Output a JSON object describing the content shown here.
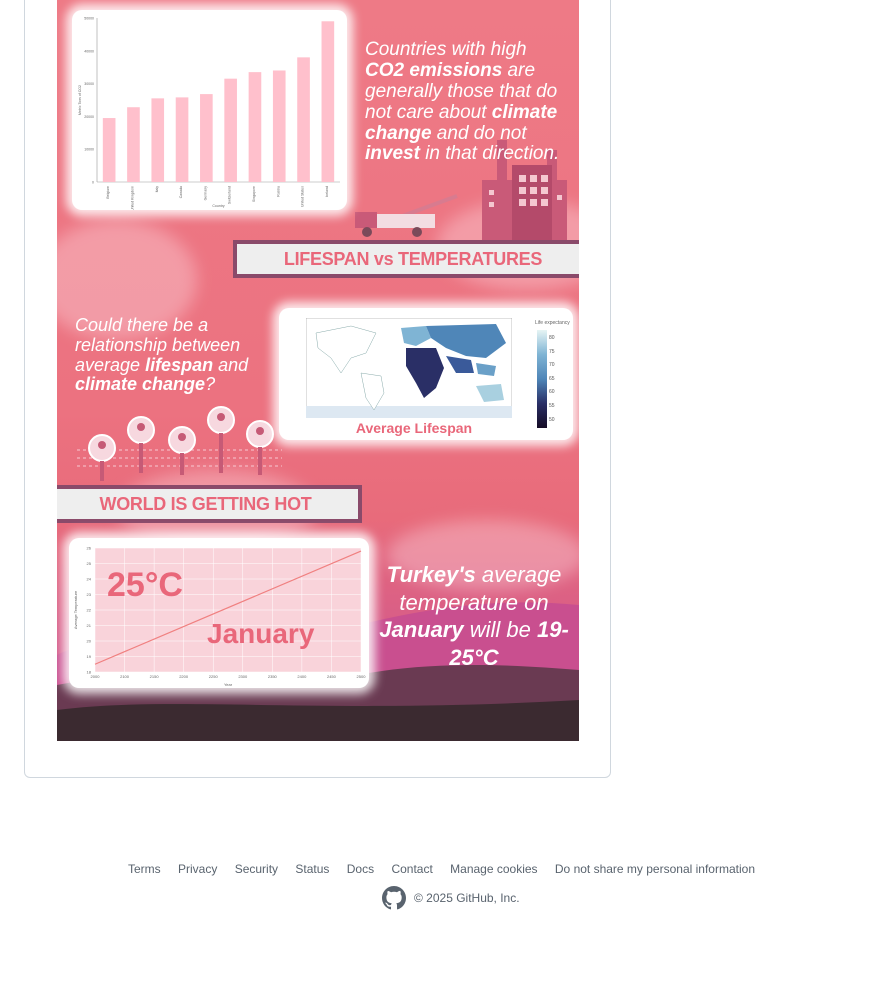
{
  "poster": {
    "top_text": {
      "part1": "Countries with high ",
      "bold1": "CO2 emissions",
      "part2": " are generally those that do not care about ",
      "bold2": "climate change",
      "part3": " and do not ",
      "bold3": "invest",
      "part4": " in that direction."
    },
    "headline_lifespan": "LIFESPAN vs TEMPERATURES",
    "question_text": {
      "part1": "Could there be a relationship between average ",
      "bold1": "lifespan",
      "part2": " and ",
      "bold2": "climate change",
      "part3": "?"
    },
    "map_caption": "Average Lifespan",
    "map_legend_title": "Life expectancy",
    "map_legend_ticks": [
      "80",
      "75",
      "70",
      "65",
      "60",
      "55",
      "50"
    ],
    "headline_hot": "WORLD IS GETTING HOT",
    "temp_big": "25°C",
    "temp_month": "January",
    "turkey_text": {
      "bold1": "Turkey's",
      "part1": " average temperature on ",
      "bold2": "January",
      "part2": " will be ",
      "bold3": "19-25°C"
    }
  },
  "bar_chart": {
    "chart_data": {
      "type": "bar",
      "categories": [
        "Belgium",
        "United Kingdom",
        "Italy",
        "Canada",
        "Germany",
        "Switzerland",
        "Singapore",
        "Russia",
        "United States",
        "Iceland"
      ],
      "values": [
        19500,
        22800,
        25500,
        25800,
        26800,
        31500,
        33500,
        34000,
        38000,
        49000
      ],
      "ylim": [
        0,
        50000
      ],
      "yticks": [
        "0",
        "10000",
        "20000",
        "30000",
        "40000",
        "50000"
      ],
      "ylabel": "Metric Tons of CO2",
      "xlabel": "Country",
      "color": "#ffc0cc"
    }
  },
  "line_chart": {
    "chart_data": {
      "type": "line",
      "x": [
        2000,
        2500
      ],
      "y": [
        18.5,
        25.8
      ],
      "xticks": [
        "2000",
        "2100",
        "2150",
        "2200",
        "2250",
        "2300",
        "2350",
        "2400",
        "2450",
        "2500"
      ],
      "yticks": [
        "18",
        "19",
        "20",
        "21",
        "22",
        "23",
        "24",
        "25",
        "26"
      ],
      "ylim": [
        18,
        26
      ],
      "xlabel": "Year",
      "ylabel": "Average Temperature",
      "color": "#f08080"
    }
  },
  "footer": {
    "links": [
      "Terms",
      "Privacy",
      "Security",
      "Status",
      "Docs",
      "Contact",
      "Manage cookies",
      "Do not share my personal information"
    ],
    "copyright": "© 2025 GitHub, Inc."
  }
}
